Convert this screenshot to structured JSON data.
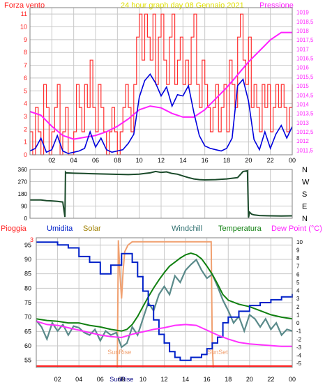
{
  "colors": {
    "background": "#ffffff",
    "plot_border": "#808080",
    "grid": "#c8c8c8",
    "wind": "#ff2020",
    "gust_fill": "#ff3030",
    "pressure": "#ff20ff",
    "avg_wind": "#0000dd",
    "direction": "#1a4a2a",
    "pioggia": "#ff2020",
    "umidita": "#0020c8",
    "solar": "#f0a070",
    "windchill": "#5a8a8a",
    "temperatura": "#108010",
    "dewpoint": "#ff30ff",
    "solar_label": "#a08000",
    "windchill_label": "#307070"
  },
  "chart_data": [
    {
      "type": "line",
      "name": "wind-pressure",
      "title": "24 hour graph day   08 Gennaio 2021",
      "left_label": "Forza vento",
      "right_label": "Pressione",
      "x_ticks": [
        "02",
        "04",
        "06",
        "08",
        "10",
        "12",
        "14",
        "16",
        "18",
        "20",
        "22",
        "00"
      ],
      "y_left_ticks": [
        "0",
        "1",
        "2",
        "3",
        "4",
        "5",
        "6",
        "7",
        "8",
        "9",
        "10",
        "11"
      ],
      "y_right_ticks": [
        "1011,5",
        "1012",
        "1012,5",
        "1013",
        "1013,5",
        "1014",
        "1014,5",
        "1015",
        "1015,5",
        "1016",
        "1016,5",
        "1017",
        "1017,5",
        "1018",
        "1018,5",
        "1019"
      ],
      "ylim_left": [
        0,
        11.5
      ],
      "ylim_right": [
        1011.25,
        1019.25
      ],
      "xlim": [
        0,
        24
      ],
      "pressure": {
        "x": [
          0,
          1,
          2,
          3,
          4,
          5,
          6,
          7,
          8,
          9,
          10,
          11,
          12,
          13,
          14,
          15,
          16,
          17,
          18,
          19,
          20,
          21,
          22,
          23,
          24
        ],
        "y": [
          1013.6,
          1013.4,
          1012.8,
          1012.3,
          1012.1,
          1012.2,
          1012.3,
          1012.5,
          1012.8,
          1013.2,
          1013.7,
          1013.9,
          1013.8,
          1013.5,
          1013.3,
          1013.3,
          1013.7,
          1014.3,
          1014.9,
          1015.6,
          1016.3,
          1016.9,
          1017.5,
          1017.9,
          1017.9
        ]
      },
      "avg_wind": {
        "x": [
          0,
          0.5,
          1,
          1.5,
          2,
          2.5,
          3,
          3.5,
          4,
          4.5,
          5,
          5.5,
          6,
          6.5,
          7,
          7.5,
          8,
          8.5,
          9,
          9.5,
          10,
          10.5,
          11,
          11.5,
          12,
          12.5,
          13,
          13.5,
          14,
          14.5,
          15,
          15.5,
          16,
          16.5,
          17,
          17.5,
          18,
          18.5,
          19,
          19.5,
          20,
          20.5,
          21,
          21.5,
          22,
          22.5,
          23,
          23.5,
          24
        ],
        "y": [
          0.3,
          0.5,
          1.3,
          0.2,
          0.4,
          1.5,
          0.3,
          0.1,
          0.2,
          0.3,
          0.5,
          1.8,
          0.6,
          1.3,
          0.4,
          0.2,
          0.3,
          0.4,
          0.9,
          1.6,
          4.5,
          5.8,
          6.3,
          5.6,
          4.6,
          5.3,
          3.8,
          4.7,
          4.6,
          5.4,
          3.3,
          1.5,
          0.7,
          0.5,
          0.4,
          0.3,
          0.5,
          1.3,
          5.4,
          5.9,
          4.2,
          1.2,
          0.4,
          1.8,
          0.5,
          1.6,
          2.3,
          1.3,
          2.2
        ]
      },
      "gust_wind": {
        "x": [
          0,
          0.25,
          0.5,
          0.75,
          1,
          1.25,
          1.5,
          1.75,
          2,
          2.25,
          2.5,
          2.75,
          3,
          3.25,
          3.5,
          3.75,
          4,
          4.25,
          4.5,
          4.75,
          5,
          5.25,
          5.5,
          5.75,
          6,
          6.25,
          6.5,
          6.75,
          7,
          7.25,
          7.5,
          7.75,
          8,
          8.25,
          8.5,
          8.75,
          9,
          9.25,
          9.5,
          9.75,
          10,
          10.25,
          10.5,
          10.75,
          11,
          11.25,
          11.5,
          11.75,
          12,
          12.25,
          12.5,
          12.75,
          13,
          13.25,
          13.5,
          13.75,
          14,
          14.25,
          14.5,
          14.75,
          15,
          15.25,
          15.5,
          15.75,
          16,
          16.25,
          16.5,
          16.75,
          17,
          17.25,
          17.5,
          17.75,
          18,
          18.25,
          18.5,
          18.75,
          19,
          19.25,
          19.5,
          19.75,
          20,
          20.25,
          20.5,
          20.75,
          21,
          21.25,
          21.5,
          21.75,
          22,
          22.25,
          22.5,
          22.75,
          23,
          23.25,
          23.5,
          23.75,
          24
        ],
        "y": [
          1.8,
          0,
          3.7,
          1.8,
          0,
          5.5,
          3.7,
          0,
          1.8,
          3.7,
          5.5,
          0,
          1.8,
          3.7,
          0,
          0,
          1.8,
          5.5,
          3.7,
          1.8,
          5.5,
          3.7,
          7.4,
          3.7,
          1.8,
          5.5,
          3.7,
          1.8,
          0,
          1.8,
          3.7,
          1.8,
          0,
          1.8,
          3.7,
          5.5,
          3.7,
          1.8,
          5.5,
          9.2,
          11,
          7.4,
          11,
          9.2,
          7.4,
          11,
          5.5,
          9.2,
          11,
          7.4,
          5.5,
          9.2,
          11,
          5.5,
          7.4,
          9.2,
          5.5,
          7.4,
          5.5,
          9.2,
          11,
          5.5,
          3.7,
          7.4,
          5.5,
          3.7,
          1.8,
          3.7,
          5.5,
          1.8,
          3.7,
          5.5,
          1.8,
          7.4,
          5.5,
          3.7,
          9.2,
          11,
          7.4,
          5.5,
          9.2,
          3.7,
          5.5,
          3.7,
          1.8,
          5.5,
          3.7,
          5.5,
          1.8,
          3.7,
          5.5,
          3.7,
          5.5,
          3.7,
          1.8,
          3.7,
          5.5
        ]
      }
    },
    {
      "type": "line",
      "name": "wind-direction",
      "y_ticks": [
        "360",
        "270",
        "180",
        "90",
        "0"
      ],
      "right_labels": [
        "N",
        "W",
        "S",
        "E",
        "N"
      ],
      "ylim": [
        0,
        360
      ],
      "xlim": [
        0,
        24
      ],
      "direction": {
        "x": [
          0,
          0.5,
          1,
          1.5,
          2,
          2.5,
          3,
          3.2,
          3.25,
          3.3,
          4,
          5,
          6,
          7,
          8,
          9,
          10,
          10.5,
          11,
          11.5,
          12,
          12.5,
          13,
          13.5,
          14,
          14.5,
          15,
          15.5,
          16,
          17,
          18,
          19,
          19.5,
          19.9,
          20,
          20.1,
          20.3,
          20.5,
          21,
          22,
          23,
          24
        ],
        "y": [
          135,
          135,
          135,
          130,
          128,
          125,
          120,
          10,
          340,
          335,
          332,
          330,
          328,
          326,
          324,
          322,
          325,
          330,
          335,
          345,
          338,
          342,
          330,
          325,
          312,
          300,
          290,
          285,
          283,
          285,
          290,
          300,
          345,
          350,
          5,
          45,
          30,
          25,
          20,
          18,
          17,
          18
        ]
      }
    },
    {
      "type": "line",
      "name": "climate",
      "labels": {
        "pioggia": "Pioggia",
        "umidita": "Umidita",
        "solar": "Solar",
        "windchill": "Windchill",
        "temperatura": "Temperatura",
        "dewpoint": "Dew Point (°C)"
      },
      "left_ticks": [
        "55",
        "60",
        "65",
        "70",
        "75",
        "80",
        "85",
        "90",
        "95"
      ],
      "right_ticks": [
        "10",
        "9",
        "8",
        "7",
        "6",
        "5",
        "4",
        "3",
        "2",
        "1",
        "0",
        "-1",
        "-2",
        "-3",
        "-4",
        "-5"
      ],
      "rain_marker": "3",
      "ylim_left": [
        52.5,
        97.5
      ],
      "ylim_right": [
        -5.5,
        10.5
      ],
      "xlim": [
        0,
        24
      ],
      "annotations": {
        "sunrise": "SunRise",
        "sunset": "SunSet"
      },
      "sunrise_hour": 7.8,
      "sunset_hour": 16.6,
      "humidity": {
        "x": [
          0,
          1,
          2,
          3,
          4,
          5,
          6,
          7,
          8,
          8.5,
          9,
          9.5,
          10,
          10.5,
          11,
          11.5,
          12,
          12.5,
          13,
          13.5,
          14,
          14.5,
          15,
          15.5,
          16,
          16.5,
          17,
          17.5,
          18,
          19,
          20,
          21,
          22,
          23,
          24
        ],
        "y": [
          96,
          96,
          95,
          94,
          91,
          89,
          85,
          88,
          92,
          92,
          89,
          84,
          79,
          74,
          69,
          64,
          61,
          58,
          56,
          55,
          55,
          56,
          56,
          57,
          59,
          61,
          63,
          68,
          70,
          72,
          74,
          75,
          76,
          77,
          78
        ]
      },
      "temperature": {
        "x": [
          0,
          1,
          2,
          3,
          4,
          5,
          6,
          7,
          8,
          8.5,
          9,
          9.5,
          10,
          10.5,
          11,
          11.5,
          12,
          12.5,
          13,
          13.5,
          14,
          14.5,
          15,
          15.5,
          16,
          16.5,
          17,
          17.5,
          18,
          19,
          20,
          21,
          22,
          23,
          24
        ],
        "y": [
          0.5,
          0.3,
          0.2,
          0,
          0,
          -0.3,
          -0.5,
          -0.8,
          -1,
          -0.8,
          -0.2,
          0.8,
          2,
          3.2,
          4.3,
          5.3,
          6.2,
          7,
          7.5,
          8,
          8.4,
          8.6,
          8.4,
          7.9,
          7,
          6,
          4.8,
          3.5,
          2.8,
          2.3,
          2,
          1.5,
          1,
          0.7,
          0.5
        ]
      },
      "windchill": {
        "x": [
          0,
          0.5,
          1,
          1.5,
          2,
          2.5,
          3,
          3.5,
          4,
          4.5,
          5,
          5.5,
          6,
          6.5,
          7,
          7.5,
          8,
          8.5,
          9,
          9.5,
          10,
          10.5,
          11,
          11.5,
          12,
          12.5,
          13,
          13.5,
          14,
          14.5,
          15,
          15.5,
          16,
          16.5,
          17,
          17.5,
          18,
          18.5,
          19,
          19.5,
          20,
          20.5,
          21,
          21.5,
          22,
          22.5,
          23,
          23.5,
          24
        ],
        "y": [
          0.3,
          -0.5,
          -2,
          0,
          -1,
          -0.2,
          -1.5,
          -0.4,
          -0.6,
          -1.2,
          -1.5,
          -0.8,
          -2.2,
          -1,
          -1.5,
          -1.2,
          -3,
          -2.5,
          -0.5,
          -1.5,
          0.5,
          2.5,
          1.5,
          3.5,
          4.5,
          3.5,
          5.8,
          5,
          6.5,
          7.2,
          7.8,
          6.5,
          5.5,
          6,
          4.5,
          2.8,
          1.5,
          0,
          0.8,
          -1,
          1,
          0.5,
          -0.5,
          0.5,
          -0.8,
          0,
          -1.5,
          -0.8,
          -1
        ]
      },
      "dewpoint": {
        "x": [
          0,
          1,
          2,
          3,
          4,
          5,
          6,
          7,
          8,
          9,
          10,
          11,
          12,
          13,
          14,
          15,
          16,
          17,
          18,
          19,
          20,
          21,
          22,
          23,
          24
        ],
        "y": [
          0.2,
          -0.2,
          -0.3,
          -0.6,
          -0.9,
          -1.2,
          -1.5,
          -1.7,
          -1.8,
          -1.4,
          -1.1,
          -0.8,
          -0.6,
          -0.3,
          -0.2,
          -0.3,
          -0.9,
          -1.5,
          -2,
          -2.4,
          -2.6,
          -2.7,
          -2.8,
          -2.9,
          -2.9
        ]
      },
      "solar": {
        "x": [
          7.6,
          7.7,
          7.85,
          8,
          8.15,
          8.3,
          8.6,
          9,
          10,
          11,
          12,
          13,
          14,
          15,
          16,
          16.4,
          16.5,
          16.6
        ],
        "y": [
          -5.5,
          10.2,
          6,
          3,
          6.5,
          8.8,
          9.6,
          10,
          10,
          10,
          10,
          10,
          10,
          10,
          10,
          10,
          -2.5,
          -5.5
        ]
      }
    }
  ]
}
